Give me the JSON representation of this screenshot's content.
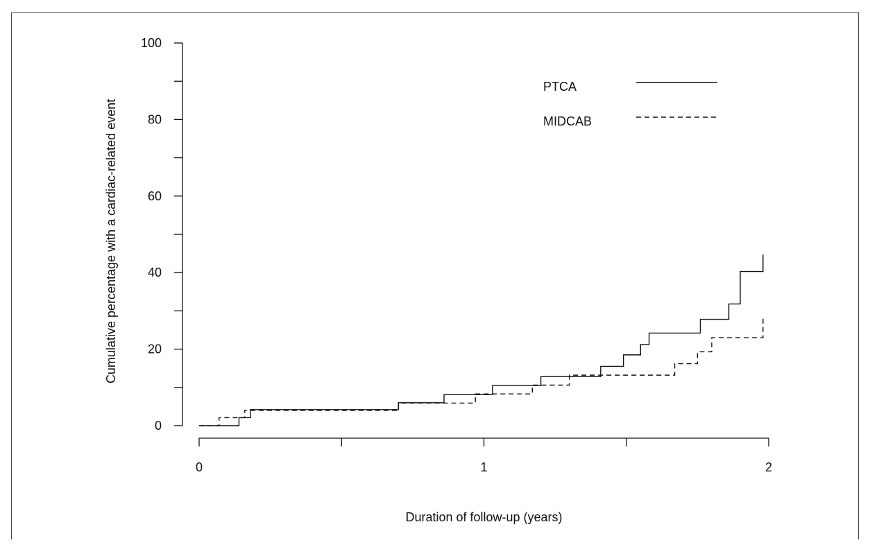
{
  "chart_data": {
    "type": "line",
    "title": "",
    "xlabel": "Duration of follow-up (years)",
    "ylabel": "Cumulative percentage with a cardiac-related event",
    "xlim": [
      0,
      2
    ],
    "ylim": [
      0,
      100
    ],
    "x_ticks": [
      "0",
      "1",
      "2"
    ],
    "y_ticks": [
      "0",
      "20",
      "40",
      "60",
      "80",
      "100"
    ],
    "x_minor_ticks": [
      0.5,
      1.5
    ],
    "y_minor_ticks": [
      10,
      30,
      50,
      70,
      90
    ],
    "grid": false,
    "legend_position": "top-right",
    "series": [
      {
        "name": "PTCA",
        "line_style": "solid",
        "color": "#111111",
        "step": true,
        "x": [
          0,
          0.14,
          0.18,
          0.7,
          0.86,
          1.03,
          1.2,
          1.41,
          1.49,
          1.55,
          1.58,
          1.76,
          1.86,
          1.9,
          1.98
        ],
        "y": [
          0,
          2.1,
          4.2,
          6.0,
          8.1,
          10.5,
          12.8,
          15.5,
          18.5,
          21.2,
          24.2,
          27.8,
          31.8,
          40.3,
          44.7
        ]
      },
      {
        "name": "MIDCAB",
        "line_style": "dashed",
        "color": "#111111",
        "step": true,
        "x": [
          0,
          0.07,
          0.16,
          0.7,
          0.97,
          1.17,
          1.3,
          1.67,
          1.75,
          1.8,
          1.98
        ],
        "y": [
          0,
          2.1,
          4.0,
          5.9,
          8.3,
          10.6,
          13.2,
          16.2,
          19.3,
          23.0,
          28.0
        ]
      }
    ]
  }
}
